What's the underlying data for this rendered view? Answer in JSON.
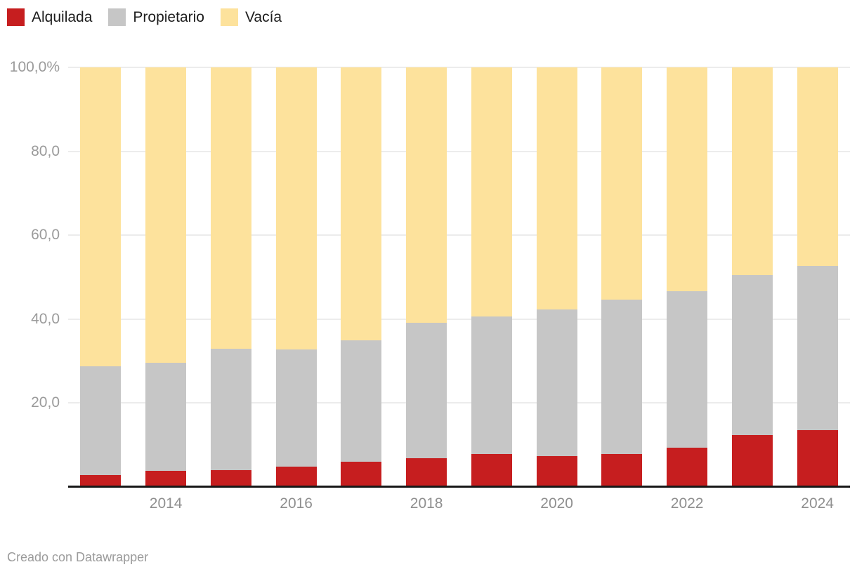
{
  "legend": {
    "items": [
      {
        "label": "Alquilada",
        "color": "#c61e1f"
      },
      {
        "label": "Propietario",
        "color": "#c6c6c6"
      },
      {
        "label": "Vacía",
        "color": "#fde29c"
      }
    ]
  },
  "footer": {
    "text": "Creado con Datawrapper"
  },
  "chart_data": {
    "type": "bar",
    "variant": "stacked-percent",
    "title": "",
    "xlabel": "",
    "ylabel": "",
    "ylim": [
      0,
      100
    ],
    "grid": true,
    "legend_position": "top-left",
    "categories": [
      "2013",
      "2014",
      "2015",
      "2016",
      "2017",
      "2018",
      "2019",
      "2020",
      "2021",
      "2022",
      "2023",
      "2024"
    ],
    "series": [
      {
        "name": "Alquilada",
        "color": "#c61e1f",
        "values": [
          2.9,
          3.8,
          4.0,
          4.8,
          6.0,
          6.8,
          7.9,
          7.3,
          7.8,
          9.4,
          12.4,
          13.6
        ]
      },
      {
        "name": "Propietario",
        "color": "#c6c6c6",
        "values": [
          25.8,
          25.8,
          29.0,
          28.0,
          29.0,
          32.3,
          32.7,
          35.0,
          36.8,
          37.3,
          38.1,
          39.0
        ]
      },
      {
        "name": "Vacía",
        "color": "#fde29c",
        "values": [
          71.3,
          70.4,
          67.0,
          67.2,
          65.0,
          60.9,
          59.4,
          57.7,
          55.4,
          53.3,
          49.5,
          47.4
        ]
      }
    ],
    "ytick_labels": [
      "100,0%",
      "80,0",
      "60,0",
      "40,0",
      "20,0"
    ],
    "ytick_values": [
      100,
      80,
      60,
      40,
      20
    ],
    "xtick_labels": [
      "2014",
      "2016",
      "2018",
      "2020",
      "2022",
      "2024"
    ],
    "xtick_slots": [
      1,
      3,
      5,
      7,
      9,
      11
    ]
  }
}
